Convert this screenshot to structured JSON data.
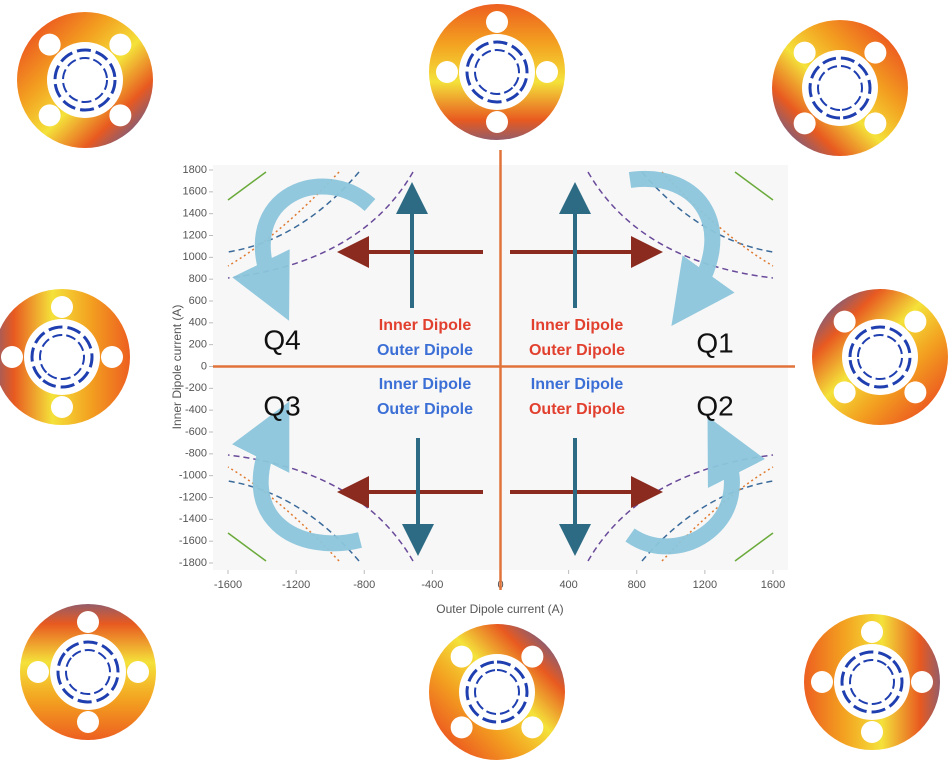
{
  "chart_data": {
    "type": "quadrant",
    "xlabel": "Outer Dipole current (A)",
    "ylabel": "Inner Dipole current (A)",
    "xlim": [
      -1600,
      1600
    ],
    "ylim": [
      -1800,
      1800
    ],
    "xticks": [
      -1600,
      -1200,
      -800,
      -400,
      0,
      400,
      800,
      1200,
      1600
    ],
    "yticks": [
      -1800,
      -1600,
      -1400,
      -1200,
      -1000,
      -800,
      -600,
      -400,
      -200,
      0,
      200,
      400,
      600,
      800,
      1000,
      1200,
      1400,
      1600,
      1800
    ],
    "axis_color": "#e0733a",
    "quadrants": [
      {
        "label": "Q1",
        "lines": [
          {
            "text": "Inner Dipole",
            "color": "#e2402f"
          },
          {
            "text": "Outer Dipole",
            "color": "#e2402f"
          }
        ]
      },
      {
        "label": "Q2",
        "lines": [
          {
            "text": "Inner Dipole",
            "color": "#3b6fd6"
          },
          {
            "text": "Outer Dipole",
            "color": "#e2402f"
          }
        ]
      },
      {
        "label": "Q3",
        "lines": [
          {
            "text": "Inner Dipole",
            "color": "#3b6fd6"
          },
          {
            "text": "Outer Dipole",
            "color": "#3b6fd6"
          }
        ]
      },
      {
        "label": "Q4",
        "lines": [
          {
            "text": "Inner Dipole",
            "color": "#e2402f"
          },
          {
            "text": "Outer Dipole",
            "color": "#3b6fd6"
          }
        ]
      }
    ]
  }
}
